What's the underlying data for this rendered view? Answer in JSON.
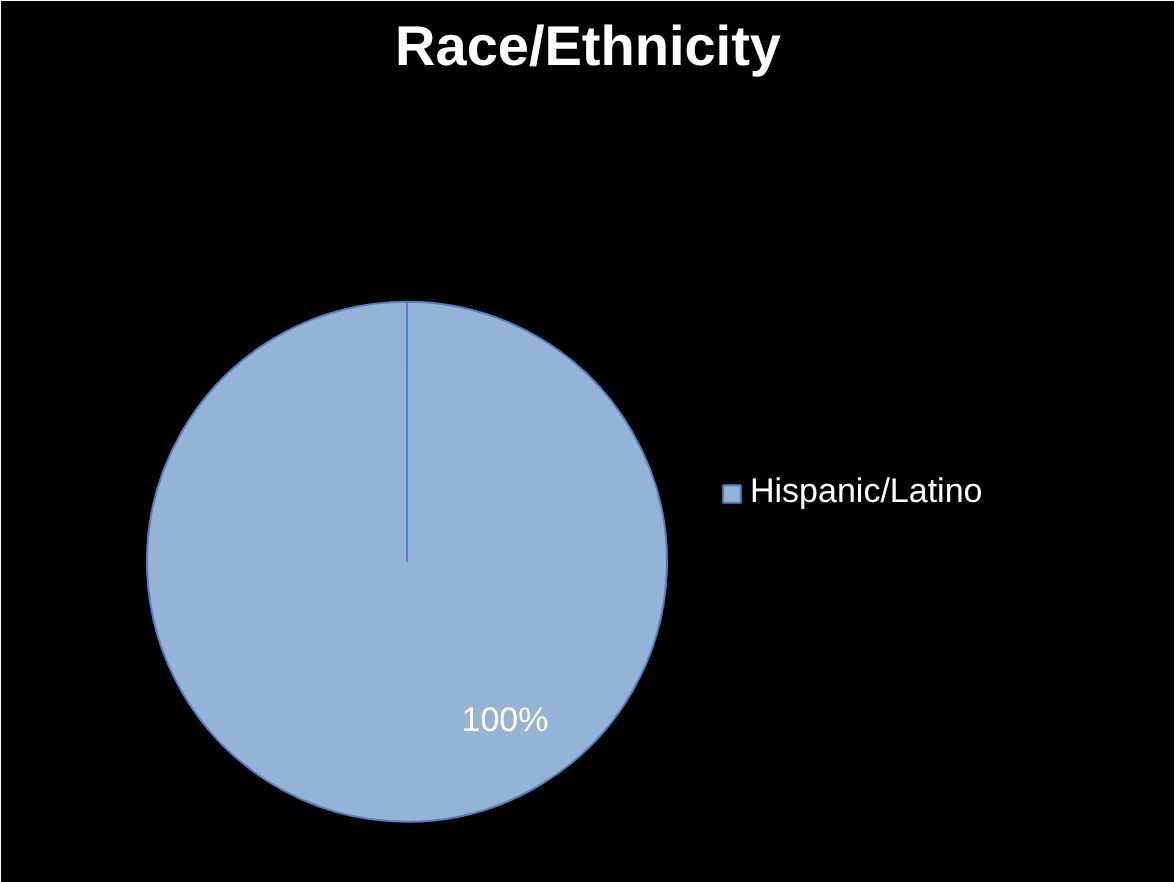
{
  "chart_data": {
    "type": "pie",
    "title": "Race/Ethnicity",
    "categories": [
      "Hispanic/Latino"
    ],
    "values": [
      100
    ],
    "colors": [
      "#95b3d7"
    ],
    "value_labels": [
      "100%"
    ],
    "legend": "right"
  }
}
